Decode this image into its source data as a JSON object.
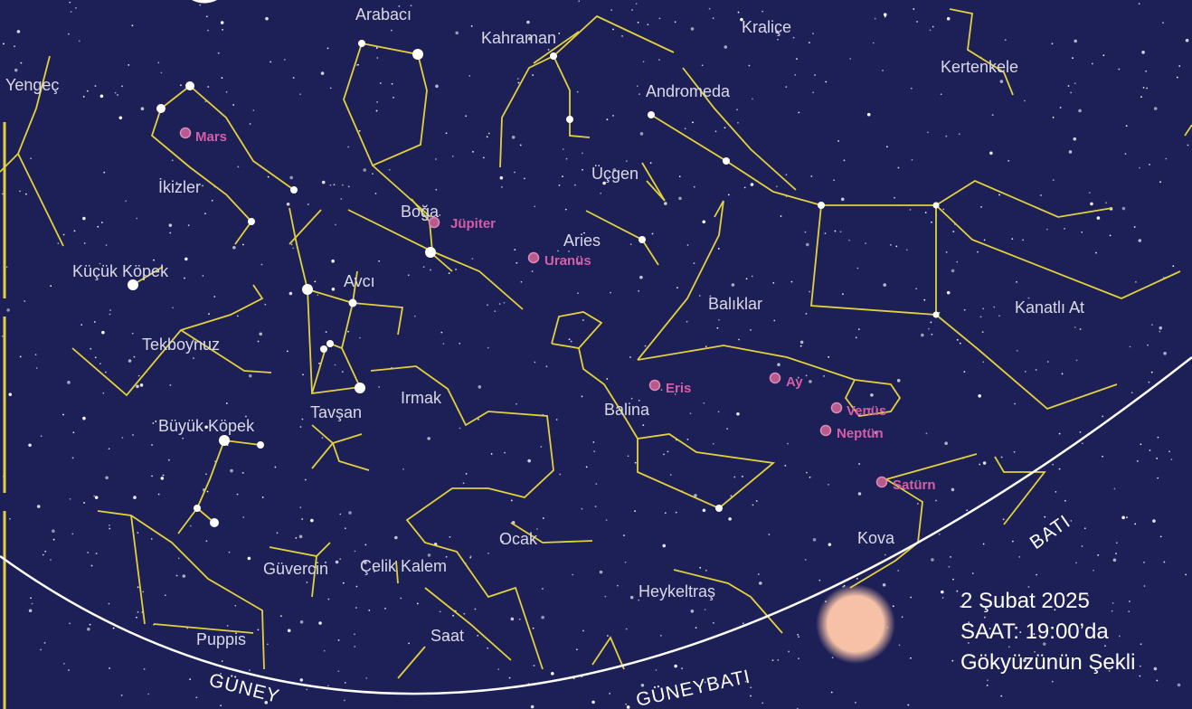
{
  "constellations": [
    "Arabacı",
    "Kahraman",
    "Kraliçe",
    "Kertenkele",
    "Yengeç",
    "Andromeda",
    "İkizler",
    "Üçgen",
    "Boğa",
    "Aries",
    "Küçük Köpek",
    "Avcı",
    "Balıklar",
    "Kanatlı At",
    "Tekboynuz",
    "Irmak",
    "Balina",
    "Tavşan",
    "Büyük Köpek",
    "Kova",
    "Ocak",
    "Güvercin",
    "Çelik Kalem",
    "Heykeltraş",
    "Puppis",
    "Saat"
  ],
  "planets": [
    "Mars",
    "Jüpiter",
    "Uranüs",
    "Eris",
    "Ay",
    "Venüs",
    "Neptün",
    "Satürn"
  ],
  "directions": [
    "GÜNEY",
    "GÜNEYBATI",
    "BATI"
  ],
  "caption": [
    "2 Şubat 2025",
    "SAAT: 19:00’da",
    "Gökyüzünün Şekli"
  ]
}
